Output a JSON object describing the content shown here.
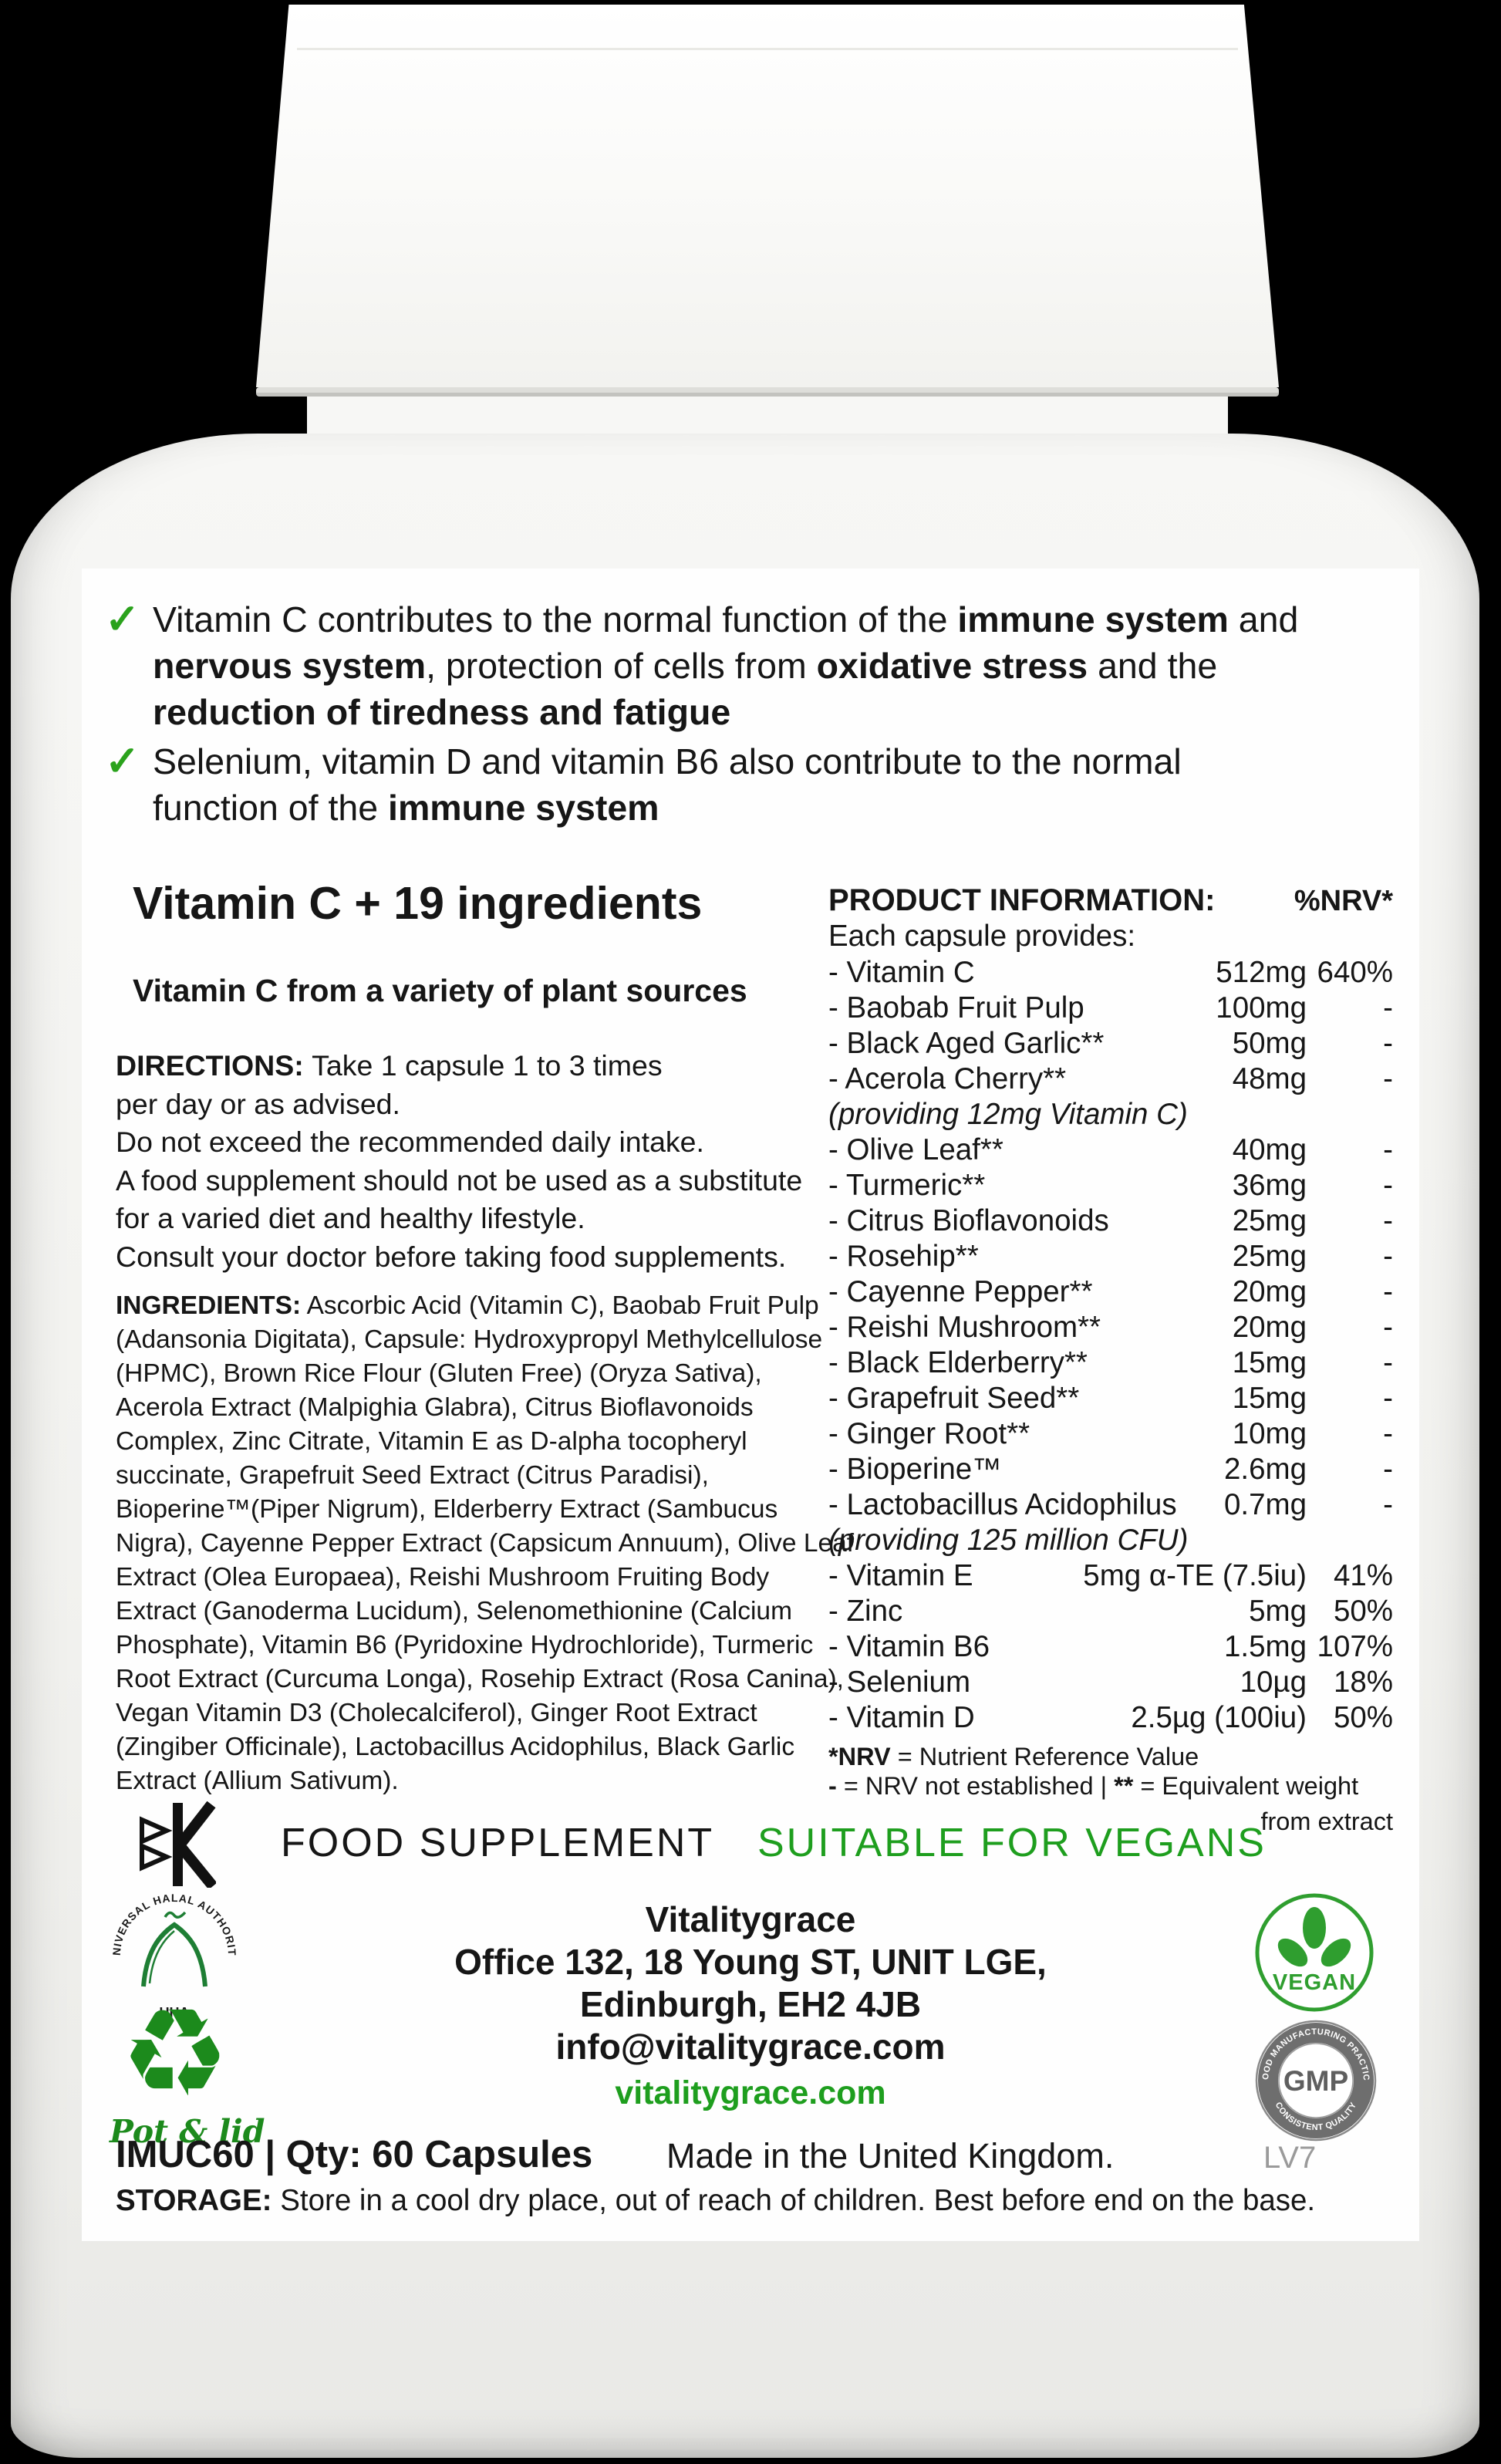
{
  "check_glyph": "✓",
  "recycle_glyph": "♻",
  "colors": {
    "green_text": "#1e9e1e",
    "logo_green": "#1c8a1c",
    "check_green": "#2aa21c",
    "gmp_gray": "#6e6e6e",
    "lv7_gray": "#9a9a9a"
  },
  "label": {
    "bullets": [
      {
        "segments": [
          {
            "t": "Vitamin C contributes to the normal function of the "
          },
          {
            "t": "immune system",
            "b": true
          },
          {
            "t": " and "
          },
          {
            "t": "nervous system",
            "b": true
          },
          {
            "t": ", protection of cells from "
          },
          {
            "t": "oxidative stress",
            "b": true
          },
          {
            "t": " and the "
          },
          {
            "t": "reduction of tiredness and fatigue",
            "b": true
          }
        ]
      },
      {
        "segments": [
          {
            "t": "Selenium, vitamin D and vitamin B6 also contribute to the normal function of the "
          },
          {
            "t": "immune system",
            "b": true
          }
        ]
      }
    ],
    "heading": "Vitamin C + 19 ingredients",
    "subheading": "Vitamin C from a variety of plant sources",
    "directions_lines": [
      [
        {
          "t": "DIRECTIONS: ",
          "b": true
        },
        {
          "t": "Take 1 capsule 1 to 3 times"
        }
      ],
      [
        {
          "t": "per day or as advised."
        }
      ],
      [
        {
          "t": "Do not exceed the recommended daily intake."
        }
      ],
      [
        {
          "t": "A food supplement should not be used as a substitute"
        }
      ],
      [
        {
          "t": "for a varied diet and healthy lifestyle."
        }
      ],
      [
        {
          "t": "Consult your doctor before taking food supplements."
        }
      ]
    ],
    "ingredients": {
      "lead": "INGREDIENTS:",
      "body": " Ascorbic Acid (Vitamin C), Baobab Fruit Pulp (Adansonia Digitata), Capsule: Hydroxypropyl Methylcellulose (HPMC), Brown Rice Flour (Gluten Free) (Oryza Sativa), Acerola Extract (Malpighia Glabra), Citrus Bioflavonoids Complex, Zinc Citrate, Vitamin E as D-alpha tocopheryl succinate, Grapefruit Seed Extract (Citrus Paradisi), Bioperine™(Piper Nigrum), Elderberry Extract (Sambucus Nigra), Cayenne Pepper Extract (Capsicum Annuum), Olive Leaf Extract (Olea Europaea), Reishi Mushroom Fruiting Body Extract (Ganoderma Lucidum), Selenomethionine (Calcium Phosphate), Vitamin B6 (Pyridoxine Hydrochloride), Turmeric Root Extract (Curcuma Longa), Rosehip Extract (Rosa Canina), Vegan Vitamin D3 (Cholecalciferol), Ginger Root Extract (Zingiber Officinale), Lactobacillus Acidophilus, Black Garlic Extract (Allium Sativum)."
    },
    "product_info": {
      "title": "PRODUCT INFORMATION:",
      "nrv_header": "%NRV*",
      "provides": "Each capsule provides:",
      "rows": [
        {
          "name": "- Vitamin C",
          "amount": "512mg",
          "nrv": "640%"
        },
        {
          "name": "- Baobab Fruit Pulp",
          "amount": "100mg",
          "nrv": "-"
        },
        {
          "name": "- Black Aged Garlic**",
          "amount": "50mg",
          "nrv": "-"
        },
        {
          "name": "- Acerola Cherry**",
          "amount": "48mg",
          "nrv": "-"
        },
        {
          "note": "(providing 12mg Vitamin C)"
        },
        {
          "name": "- Olive Leaf**",
          "amount": "40mg",
          "nrv": "-"
        },
        {
          "name": "- Turmeric**",
          "amount": "36mg",
          "nrv": "-"
        },
        {
          "name": "- Citrus Bioflavonoids",
          "amount": "25mg",
          "nrv": "-"
        },
        {
          "name": "- Rosehip**",
          "amount": "25mg",
          "nrv": "-"
        },
        {
          "name": "- Cayenne Pepper**",
          "amount": "20mg",
          "nrv": "-"
        },
        {
          "name": "- Reishi Mushroom**",
          "amount": "20mg",
          "nrv": "-"
        },
        {
          "name": "- Black Elderberry**",
          "amount": "15mg",
          "nrv": "-"
        },
        {
          "name": "- Grapefruit Seed**",
          "amount": "15mg",
          "nrv": "-"
        },
        {
          "name": "- Ginger Root**",
          "amount": "10mg",
          "nrv": "-"
        },
        {
          "name": "- Bioperine™",
          "amount": "2.6mg",
          "nrv": "-"
        },
        {
          "name": "- Lactobacillus Acidophilus",
          "amount": "0.7mg",
          "nrv": "-"
        },
        {
          "note": "(providing 125 million CFU)"
        },
        {
          "name": "- Vitamin E",
          "amount": "5mg α-TE (7.5iu)",
          "nrv": "41%"
        },
        {
          "name": "- Zinc",
          "amount": "5mg",
          "nrv": "50%"
        },
        {
          "name": "- Vitamin B6",
          "amount": "1.5mg",
          "nrv": "107%"
        },
        {
          "name": "- Selenium",
          "amount": "10µg",
          "nrv": "18%"
        },
        {
          "name": "- Vitamin D",
          "amount": "2.5µg (100iu)",
          "nrv": "50%"
        }
      ],
      "footnote_lines": [
        [
          {
            "t": "*NRV",
            "b": true
          },
          {
            "t": " = Nutrient Reference Value"
          }
        ],
        [
          {
            "t": "- ",
            "b": true
          },
          {
            "t": "= NRV not established | "
          },
          {
            "t": "**",
            "b": true
          },
          {
            "t": " = Equivalent weight"
          }
        ]
      ],
      "footnote3": "from extract"
    },
    "band": {
      "food_supplement": "FOOD SUPPLEMENT",
      "vegan": "SUITABLE FOR VEGANS"
    },
    "address": {
      "lines": [
        "Vitalitygrace",
        "Office 132, 18 Young ST, UNIT LGE,",
        "Edinburgh, EH2 4JB",
        "info@vitalitygrace.com"
      ],
      "website": "vitalitygrace.com"
    },
    "logos": {
      "halal_arc": "UNIVERSAL HALAL AUTHORITY",
      "halal_sub": "UHA",
      "recycle_caption": "Pot & lid",
      "vegan_badge": "VEGAN",
      "gmp_arc_top": "GOOD MANUFACTURING PRACTICE",
      "gmp_arc_bottom": "CONSISTENT QUALITY",
      "gmp_center": "GMP"
    },
    "bottom": {
      "sku": "IMUC60 | Qty: 60 Capsules",
      "made_in": "Made in the United Kingdom.",
      "code": "LV7",
      "storage_lead": "STORAGE:",
      "storage_body": " Store in a cool dry place, out of reach of children. Best before end on the base."
    }
  }
}
